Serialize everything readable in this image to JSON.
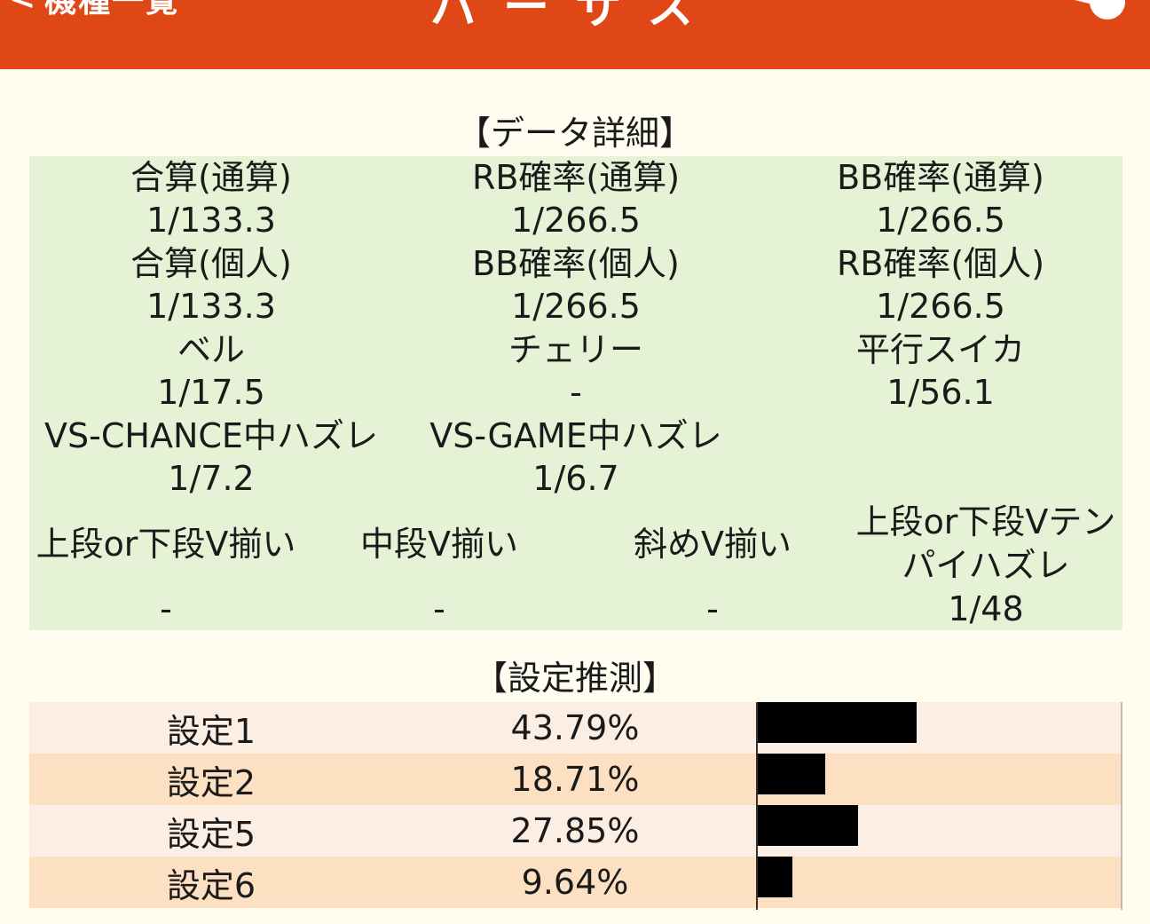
{
  "header": {
    "back_label": "機種一覧",
    "title": "バーサス",
    "accent_color": "#e04716",
    "share_icon": "share-icon"
  },
  "data_detail": {
    "title": "【データ詳細】",
    "rows": [
      [
        {
          "label": "合算(通算)",
          "value": "1/133.3"
        },
        {
          "label": "RB確率(通算)",
          "value": "1/266.5"
        },
        {
          "label": "BB確率(通算)",
          "value": "1/266.5"
        }
      ],
      [
        {
          "label": "合算(個人)",
          "value": "1/133.3"
        },
        {
          "label": "BB確率(個人)",
          "value": "1/266.5"
        },
        {
          "label": "RB確率(個人)",
          "value": "1/266.5"
        }
      ],
      [
        {
          "label": "ベル",
          "value": "1/17.5"
        },
        {
          "label": "チェリー",
          "value": "-"
        },
        {
          "label": "平行スイカ",
          "value": "1/56.1"
        }
      ],
      [
        {
          "label": "VS-CHANCE中ハズレ",
          "value": "1/7.2"
        },
        {
          "label": "VS-GAME中ハズレ",
          "value": "1/6.7"
        }
      ]
    ],
    "v_row": [
      {
        "label": "上段or下段V揃い",
        "value": "-"
      },
      {
        "label": "中段V揃い",
        "value": "-"
      },
      {
        "label": "斜めV揃い",
        "value": "-"
      },
      {
        "label_line1": "上段or下段Vテン",
        "label_line2": "パイハズレ",
        "value": "1/48"
      }
    ]
  },
  "estimate": {
    "title": "【設定推測】",
    "rows": [
      {
        "label": "設定1",
        "percent": "43.79%",
        "share": 0.4379
      },
      {
        "label": "設定2",
        "percent": "18.71%",
        "share": 0.1871
      },
      {
        "label": "設定5",
        "percent": "27.85%",
        "share": 0.2785
      },
      {
        "label": "設定6",
        "percent": "9.64%",
        "share": 0.0964
      }
    ]
  }
}
